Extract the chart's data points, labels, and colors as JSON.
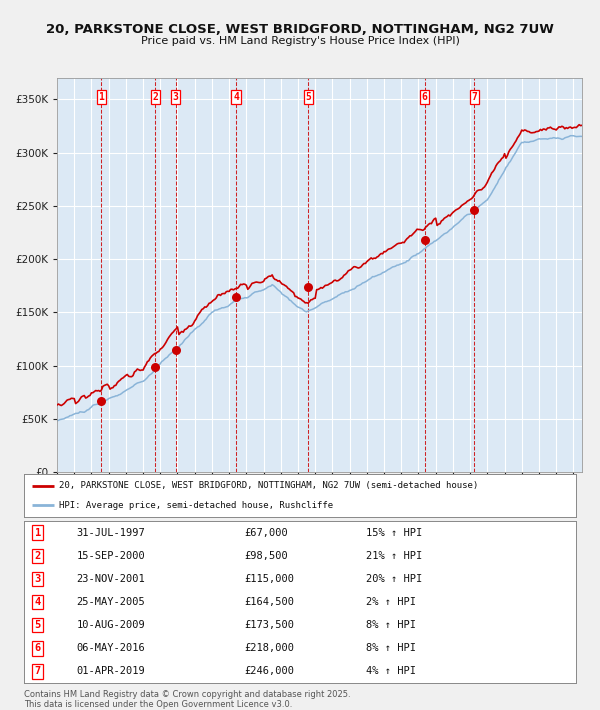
{
  "title_line1": "20, PARKSTONE CLOSE, WEST BRIDGFORD, NOTTINGHAM, NG2 7UW",
  "title_line2": "Price paid vs. HM Land Registry's House Price Index (HPI)",
  "plot_bg_color": "#dce9f5",
  "fig_bg_color": "#f0f0f0",
  "grid_color": "#ffffff",
  "transactions": [
    {
      "num": 1,
      "date_label": "31-JUL-1997",
      "date_x": 1997.58,
      "price": 67000,
      "pct": "15%",
      "dir": "↑"
    },
    {
      "num": 2,
      "date_label": "15-SEP-2000",
      "date_x": 2000.71,
      "price": 98500,
      "pct": "21%",
      "dir": "↑"
    },
    {
      "num": 3,
      "date_label": "23-NOV-2001",
      "date_x": 2001.9,
      "price": 115000,
      "pct": "20%",
      "dir": "↑"
    },
    {
      "num": 4,
      "date_label": "25-MAY-2005",
      "date_x": 2005.4,
      "price": 164500,
      "pct": "2%",
      "dir": "↑"
    },
    {
      "num": 5,
      "date_label": "10-AUG-2009",
      "date_x": 2009.61,
      "price": 173500,
      "pct": "8%",
      "dir": "↑"
    },
    {
      "num": 6,
      "date_label": "06-MAY-2016",
      "date_x": 2016.35,
      "price": 218000,
      "pct": "8%",
      "dir": "↑"
    },
    {
      "num": 7,
      "date_label": "01-APR-2019",
      "date_x": 2019.25,
      "price": 246000,
      "pct": "4%",
      "dir": "↑"
    }
  ],
  "legend_entry1": "20, PARKSTONE CLOSE, WEST BRIDGFORD, NOTTINGHAM, NG2 7UW (semi-detached house)",
  "legend_entry2": "HPI: Average price, semi-detached house, Rushcliffe",
  "footnote1": "Contains HM Land Registry data © Crown copyright and database right 2025.",
  "footnote2": "This data is licensed under the Open Government Licence v3.0.",
  "xlim": [
    1995.0,
    2025.5
  ],
  "ylim": [
    0,
    370000
  ],
  "yticks": [
    0,
    50000,
    100000,
    150000,
    200000,
    250000,
    300000,
    350000
  ],
  "red_line_color": "#cc0000",
  "blue_line_color": "#8ab4d8",
  "dot_color": "#cc0000",
  "vline_color": "#cc0000"
}
